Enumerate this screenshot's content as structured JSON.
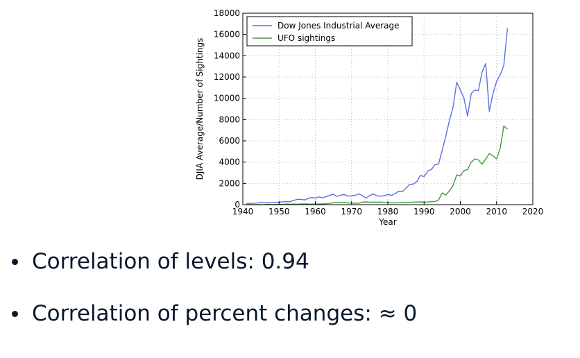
{
  "chart_data": {
    "type": "line",
    "title": "",
    "xlabel": "Year",
    "ylabel": "DJIA Average/Number of Sightings",
    "xlim": [
      1940,
      2020
    ],
    "ylim": [
      0,
      18000
    ],
    "xticks": [
      1940,
      1950,
      1960,
      1970,
      1980,
      1990,
      2000,
      2010,
      2020
    ],
    "yticks": [
      0,
      2000,
      4000,
      6000,
      8000,
      10000,
      12000,
      14000,
      16000,
      18000
    ],
    "grid": true,
    "legend": "top-left",
    "series": [
      {
        "name": "Dow Jones Industrial Average",
        "color": "#5b6fe0",
        "x": [
          1941,
          1942,
          1943,
          1944,
          1945,
          1946,
          1947,
          1948,
          1949,
          1950,
          1951,
          1952,
          1953,
          1954,
          1955,
          1956,
          1957,
          1958,
          1959,
          1960,
          1961,
          1962,
          1963,
          1964,
          1965,
          1966,
          1967,
          1968,
          1969,
          1970,
          1971,
          1972,
          1973,
          1974,
          1975,
          1976,
          1977,
          1978,
          1979,
          1980,
          1981,
          1982,
          1983,
          1984,
          1985,
          1986,
          1987,
          1988,
          1989,
          1990,
          1991,
          1992,
          1993,
          1994,
          1995,
          1996,
          1997,
          1998,
          1999,
          2000,
          2001,
          2002,
          2003,
          2004,
          2005,
          2006,
          2007,
          2008,
          2009,
          2010,
          2011,
          2012,
          2013
        ],
        "y": [
          110,
          119,
          135,
          152,
          193,
          177,
          181,
          177,
          200,
          235,
          269,
          291,
          281,
          404,
          488,
          499,
          435,
          583,
          679,
          615,
          731,
          652,
          762,
          874,
          969,
          785,
          905,
          943,
          800,
          838,
          890,
          1020,
          850,
          616,
          852,
          1004,
          831,
          805,
          838,
          963,
          875,
          1046,
          1258,
          1211,
          1546,
          1895,
          1938,
          2168,
          2753,
          2633,
          3168,
          3301,
          3754,
          3834,
          5117,
          6448,
          7908,
          9181,
          11497,
          10786,
          10021,
          8341,
          10453,
          10783,
          10717,
          12463,
          13264,
          8776,
          10428,
          11577,
          12217,
          13104,
          16576
        ]
      },
      {
        "name": "UFO sightings",
        "color": "#3f9a3f",
        "x": [
          1941,
          1942,
          1943,
          1944,
          1945,
          1946,
          1947,
          1948,
          1949,
          1950,
          1951,
          1952,
          1953,
          1954,
          1955,
          1956,
          1957,
          1958,
          1959,
          1960,
          1961,
          1962,
          1963,
          1964,
          1965,
          1966,
          1967,
          1968,
          1969,
          1970,
          1971,
          1972,
          1973,
          1974,
          1975,
          1976,
          1977,
          1978,
          1979,
          1980,
          1981,
          1982,
          1983,
          1984,
          1985,
          1986,
          1987,
          1988,
          1989,
          1990,
          1991,
          1992,
          1993,
          1994,
          1995,
          1996,
          1997,
          1998,
          1999,
          2000,
          2001,
          2002,
          2003,
          2004,
          2005,
          2006,
          2007,
          2008,
          2009,
          2010,
          2011,
          2012,
          2013
        ],
        "y": [
          2,
          3,
          4,
          4,
          8,
          12,
          40,
          15,
          20,
          30,
          25,
          60,
          45,
          50,
          45,
          60,
          80,
          60,
          55,
          70,
          60,
          70,
          90,
          110,
          200,
          190,
          210,
          200,
          160,
          150,
          130,
          140,
          240,
          260,
          220,
          250,
          230,
          250,
          200,
          180,
          170,
          170,
          180,
          200,
          210,
          210,
          240,
          240,
          260,
          240,
          250,
          280,
          300,
          450,
          1100,
          900,
          1300,
          1800,
          2800,
          2700,
          3200,
          3300,
          4000,
          4300,
          4200,
          3800,
          4300,
          4800,
          4600,
          4300,
          5300,
          7400,
          7100
        ]
      }
    ]
  },
  "bullets": [
    "Correlation of levels: 0.94",
    "Correlation of percent changes: ≈ 0"
  ]
}
